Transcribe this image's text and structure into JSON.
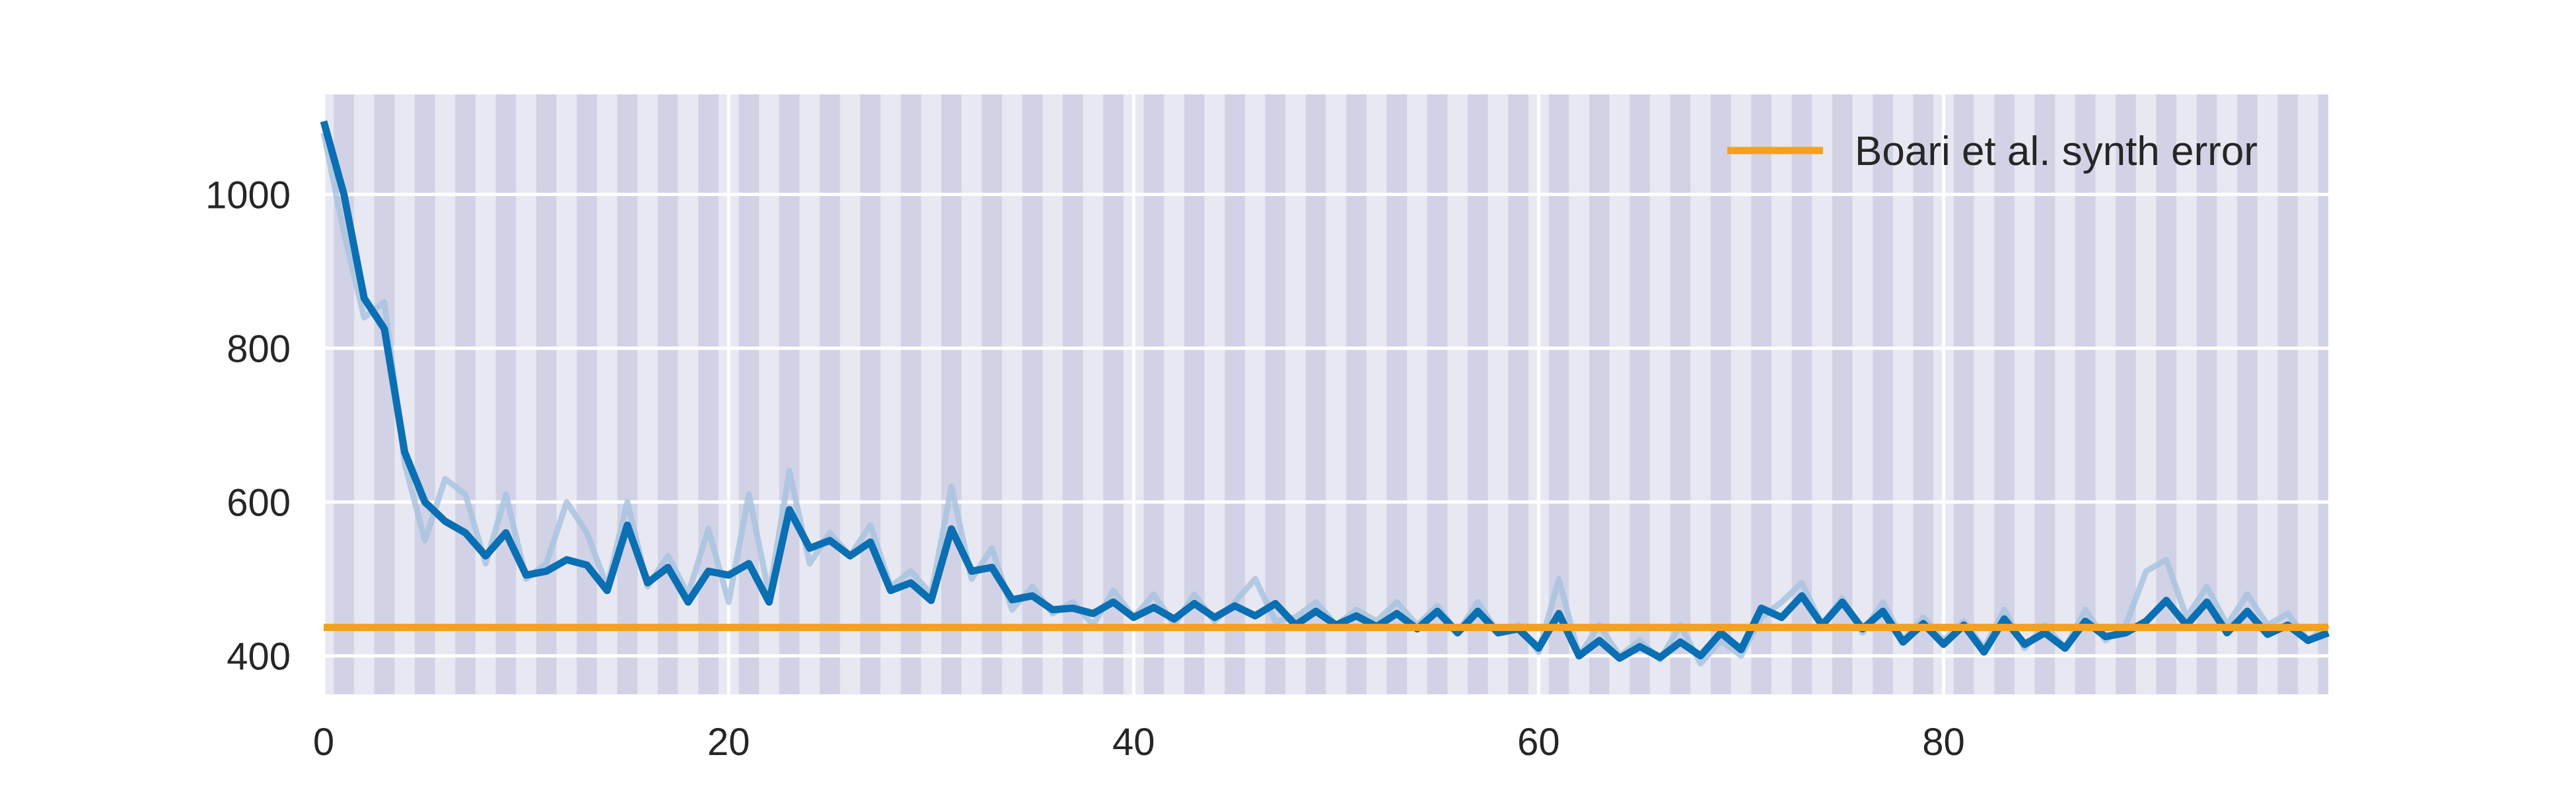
{
  "chart_data": {
    "type": "line",
    "title": "",
    "xlabel": "",
    "ylabel": "",
    "xlim": [
      0,
      99
    ],
    "ylim": [
      350,
      1130
    ],
    "x_ticks": [
      0,
      20,
      40,
      60,
      80
    ],
    "y_ticks": [
      400,
      600,
      800,
      1000
    ],
    "x_tick_labels": [
      "0",
      "20",
      "40",
      "60",
      "80"
    ],
    "y_tick_labels": [
      "400",
      "600",
      "800",
      "1000"
    ],
    "grid": true,
    "shaded_bands": "alternating vertical bands at every unit interval",
    "legend": {
      "placement": "top-right"
    },
    "colors": {
      "main_line": "#0a6fb3",
      "faint_line": "#a9c4df",
      "reference_line": "#f5a11c",
      "background": "#e8e8f2",
      "band": "#d2d2e6",
      "grid": "#ffffff"
    },
    "series": [
      {
        "values": [
          1095,
          1000,
          865,
          825,
          665,
          600,
          575,
          560,
          530,
          560,
          505,
          510,
          525,
          518,
          485,
          570,
          495,
          515,
          470,
          510,
          505,
          520,
          470,
          590,
          540,
          550,
          530,
          548,
          485,
          495,
          472,
          565,
          510,
          515,
          473,
          478,
          460,
          462,
          455,
          470,
          450,
          463,
          448,
          468,
          450,
          465,
          452,
          468,
          440,
          458,
          440,
          452,
          438,
          455,
          435,
          458,
          430,
          458,
          430,
          435,
          410,
          455,
          400,
          420,
          397,
          412,
          398,
          418,
          400,
          430,
          408,
          462,
          450,
          478,
          440,
          470,
          435,
          458,
          418,
          442,
          415,
          440,
          405,
          448,
          415,
          430,
          410,
          445,
          425,
          430,
          445,
          472,
          440,
          470,
          430,
          458,
          428,
          440,
          420,
          430
        ]
      },
      {
        "values": [
          1080,
          950,
          840,
          860,
          650,
          550,
          630,
          610,
          520,
          610,
          500,
          520,
          600,
          560,
          490,
          600,
          490,
          530,
          480,
          565,
          470,
          610,
          480,
          640,
          520,
          560,
          530,
          570,
          490,
          510,
          480,
          620,
          500,
          540,
          460,
          490,
          455,
          470,
          440,
          485,
          450,
          480,
          440,
          480,
          445,
          470,
          500,
          445,
          450,
          470,
          440,
          460,
          445,
          470,
          440,
          465,
          430,
          470,
          430,
          440,
          405,
          500,
          400,
          440,
          400,
          420,
          395,
          440,
          390,
          420,
          400,
          450,
          470,
          495,
          440,
          475,
          430,
          470,
          420,
          450,
          420,
          445,
          410,
          460,
          410,
          440,
          410,
          460,
          420,
          440,
          510,
          525,
          450,
          490,
          440,
          480,
          440,
          455,
          420,
          440
        ]
      }
    ],
    "reference_line": {
      "name": "Boari et al. synth error",
      "y": 437
    }
  }
}
